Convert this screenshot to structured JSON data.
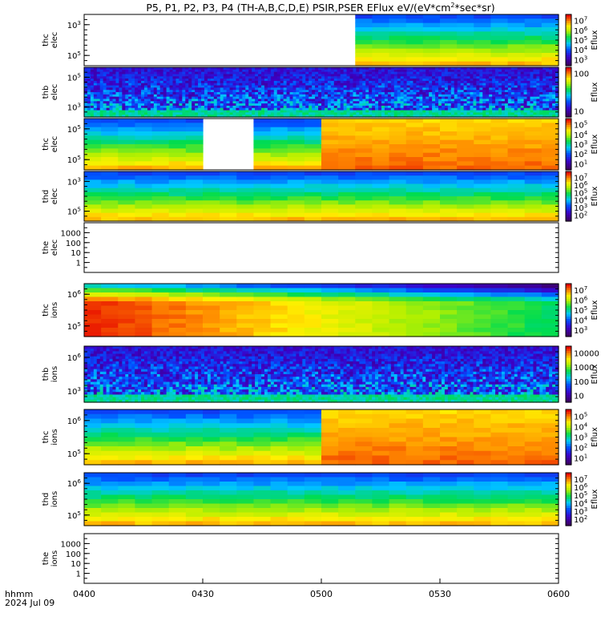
{
  "title": "P5, P1, P2, P3, P4 (TH-A,B,C,D,E) PSIR,PSER EFlux eV/(eV*cm",
  "title_sup": "2",
  "title_tail": "*sec*sr)",
  "x_axis": {
    "ticks": [
      "0400",
      "0430",
      "0500",
      "0530",
      "0600"
    ],
    "left_label_1": "hhmm",
    "left_label_2": "2024 Jul 09"
  },
  "colorbar_label": "Eflux",
  "chart_data": [
    {
      "type": "heatmap",
      "probe": "thc",
      "species": "elec",
      "ylabel_1": "thc",
      "ylabel_2": "elec",
      "y_ticks": [
        {
          "base": "10",
          "exp": "3"
        },
        {
          "base": "10",
          "exp": "5"
        }
      ],
      "colorbar_ticks": [
        {
          "base": "10",
          "exp": "7"
        },
        {
          "base": "10",
          "exp": "6"
        },
        {
          "base": "10",
          "exp": "5"
        },
        {
          "base": "10",
          "exp": "4"
        },
        {
          "base": "10",
          "exp": "3"
        }
      ],
      "data_start_time": "0506",
      "grid": false
    },
    {
      "type": "heatmap",
      "probe": "thb",
      "species": "elec",
      "ylabel_1": "thb",
      "ylabel_2": "elec",
      "y_ticks": [
        {
          "base": "10",
          "exp": "5"
        },
        {
          "base": "10",
          "exp": "3"
        }
      ],
      "colorbar_ticks": [
        {
          "base": "100",
          "exp": ""
        },
        {
          "base": "10",
          "exp": ""
        }
      ],
      "noisy": true,
      "grid": false
    },
    {
      "type": "heatmap",
      "probe": "thc",
      "species": "elec",
      "ylabel_1": "thc",
      "ylabel_2": "elec",
      "y_ticks": [
        {
          "base": "10",
          "exp": "5"
        },
        {
          "base": "10",
          "exp": "5"
        }
      ],
      "colorbar_ticks": [
        {
          "base": "10",
          "exp": "5"
        },
        {
          "base": "10",
          "exp": "4"
        },
        {
          "base": "10",
          "exp": "3"
        },
        {
          "base": "10",
          "exp": "2"
        },
        {
          "base": "10",
          "exp": "1"
        }
      ],
      "gap_time": [
        "0434",
        "0440"
      ],
      "transition_time": "0500",
      "grid": false
    },
    {
      "type": "heatmap",
      "probe": "thd",
      "species": "elec",
      "ylabel_1": "thd",
      "ylabel_2": "elec",
      "y_ticks": [
        {
          "base": "10",
          "exp": "3"
        },
        {
          "base": "10",
          "exp": "5"
        }
      ],
      "colorbar_ticks": [
        {
          "base": "10",
          "exp": "7"
        },
        {
          "base": "10",
          "exp": "6"
        },
        {
          "base": "10",
          "exp": "5"
        },
        {
          "base": "10",
          "exp": "4"
        },
        {
          "base": "10",
          "exp": "3"
        },
        {
          "base": "10",
          "exp": "2"
        }
      ],
      "grid": false
    },
    {
      "type": "heatmap",
      "probe": "the",
      "species": "elec",
      "ylabel_1": "the",
      "ylabel_2": "elec",
      "y_ticks": [
        {
          "base": "1000",
          "exp": ""
        },
        {
          "base": "100",
          "exp": ""
        },
        {
          "base": "10",
          "exp": ""
        },
        {
          "base": "1",
          "exp": ""
        }
      ],
      "empty": true,
      "grid": false
    },
    {
      "type": "heatmap",
      "probe": "thc",
      "species": "ions",
      "ylabel_1": "thc",
      "ylabel_2": "ions",
      "y_ticks": [
        {
          "base": "10",
          "exp": "6"
        },
        {
          "base": "10",
          "exp": "5"
        }
      ],
      "colorbar_ticks": [
        {
          "base": "10",
          "exp": "7"
        },
        {
          "base": "10",
          "exp": "6"
        },
        {
          "base": "10",
          "exp": "5"
        },
        {
          "base": "10",
          "exp": "4"
        },
        {
          "base": "10",
          "exp": "3"
        }
      ],
      "grid": false
    },
    {
      "type": "heatmap",
      "probe": "thb",
      "species": "ions",
      "ylabel_1": "thb",
      "ylabel_2": "ions",
      "y_ticks": [
        {
          "base": "10",
          "exp": "6"
        },
        {
          "base": "10",
          "exp": "3"
        }
      ],
      "colorbar_ticks": [
        {
          "base": "10000",
          "exp": ""
        },
        {
          "base": "1000",
          "exp": ""
        },
        {
          "base": "100",
          "exp": ""
        },
        {
          "base": "10",
          "exp": ""
        }
      ],
      "noisy": true,
      "grid": false
    },
    {
      "type": "heatmap",
      "probe": "thc",
      "species": "ions",
      "ylabel_1": "thc",
      "ylabel_2": "ions",
      "y_ticks": [
        {
          "base": "10",
          "exp": "6"
        },
        {
          "base": "10",
          "exp": "5"
        }
      ],
      "colorbar_ticks": [
        {
          "base": "10",
          "exp": "5"
        },
        {
          "base": "10",
          "exp": "4"
        },
        {
          "base": "10",
          "exp": "3"
        },
        {
          "base": "10",
          "exp": "2"
        },
        {
          "base": "10",
          "exp": "1"
        }
      ],
      "transition_time": "0500",
      "grid": false
    },
    {
      "type": "heatmap",
      "probe": "thd",
      "species": "ions",
      "ylabel_1": "thd",
      "ylabel_2": "ions",
      "y_ticks": [
        {
          "base": "10",
          "exp": "6"
        },
        {
          "base": "10",
          "exp": "5"
        }
      ],
      "colorbar_ticks": [
        {
          "base": "10",
          "exp": "7"
        },
        {
          "base": "10",
          "exp": "6"
        },
        {
          "base": "10",
          "exp": "5"
        },
        {
          "base": "10",
          "exp": "4"
        },
        {
          "base": "10",
          "exp": "3"
        },
        {
          "base": "10",
          "exp": "2"
        }
      ],
      "grid": false
    },
    {
      "type": "heatmap",
      "probe": "the",
      "species": "ions",
      "ylabel_1": "the",
      "ylabel_2": "ions",
      "y_ticks": [
        {
          "base": "1000",
          "exp": ""
        },
        {
          "base": "100",
          "exp": ""
        },
        {
          "base": "10",
          "exp": ""
        },
        {
          "base": "1",
          "exp": ""
        }
      ],
      "empty": true,
      "grid": false
    }
  ]
}
